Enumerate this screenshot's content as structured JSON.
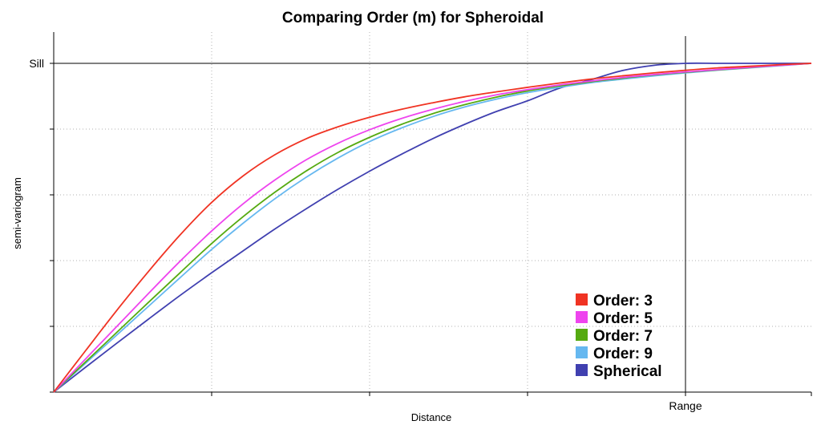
{
  "chart_data": {
    "type": "line",
    "title": "Comparing Order (m) for Spheroidal",
    "xlabel": "Distance",
    "ylabel": "semi-variogram",
    "xlim": [
      0,
      1.2
    ],
    "ylim": [
      0,
      1
    ],
    "range_value": 1.0,
    "sill_value": 1.0,
    "range_label": "Range",
    "sill_label": "Sill",
    "grid": true,
    "legend_position": "bottom-right",
    "x": [
      0,
      0.05,
      0.1,
      0.15,
      0.2,
      0.25,
      0.3,
      0.35,
      0.4,
      0.45,
      0.5,
      0.55,
      0.6,
      0.65,
      0.7,
      0.75,
      0.8,
      0.85,
      0.9,
      0.95,
      1.0,
      1.05,
      1.1,
      1.15,
      1.2
    ],
    "series": [
      {
        "name": "Order: 3",
        "color": "#f03323",
        "values": [
          0,
          0.125,
          0.249,
          0.367,
          0.478,
          0.577,
          0.658,
          0.722,
          0.771,
          0.807,
          0.836,
          0.86,
          0.88,
          0.898,
          0.913,
          0.927,
          0.94,
          0.952,
          0.962,
          0.971,
          0.979,
          0.986,
          0.991,
          0.996,
          1.0
        ]
      },
      {
        "name": "Order: 5",
        "color": "#ee44ee",
        "values": [
          0,
          0.1,
          0.2,
          0.3,
          0.398,
          0.49,
          0.573,
          0.645,
          0.707,
          0.757,
          0.798,
          0.832,
          0.86,
          0.884,
          0.904,
          0.92,
          0.934,
          0.946,
          0.957,
          0.966,
          0.974,
          0.981,
          0.988,
          0.994,
          1.0
        ]
      },
      {
        "name": "Order: 7",
        "color": "#55aa11",
        "values": [
          0,
          0.091,
          0.182,
          0.273,
          0.363,
          0.452,
          0.534,
          0.608,
          0.673,
          0.729,
          0.775,
          0.814,
          0.847,
          0.874,
          0.897,
          0.916,
          0.931,
          0.944,
          0.955,
          0.965,
          0.973,
          0.98,
          0.987,
          0.994,
          1.0
        ]
      },
      {
        "name": "Order: 9",
        "color": "#66b8f0",
        "values": [
          0,
          0.087,
          0.174,
          0.261,
          0.348,
          0.434,
          0.514,
          0.588,
          0.654,
          0.712,
          0.762,
          0.803,
          0.838,
          0.867,
          0.891,
          0.911,
          0.927,
          0.941,
          0.952,
          0.962,
          0.971,
          0.979,
          0.986,
          0.993,
          1.0
        ]
      },
      {
        "name": "Spherical",
        "color": "#4040b0",
        "values": [
          0,
          0.075,
          0.149,
          0.222,
          0.294,
          0.363,
          0.43,
          0.496,
          0.558,
          0.617,
          0.672,
          0.723,
          0.771,
          0.814,
          0.853,
          0.886,
          0.924,
          0.95,
          0.978,
          0.994,
          1.0,
          1.0,
          1.0,
          1.0,
          1.0
        ]
      }
    ]
  }
}
